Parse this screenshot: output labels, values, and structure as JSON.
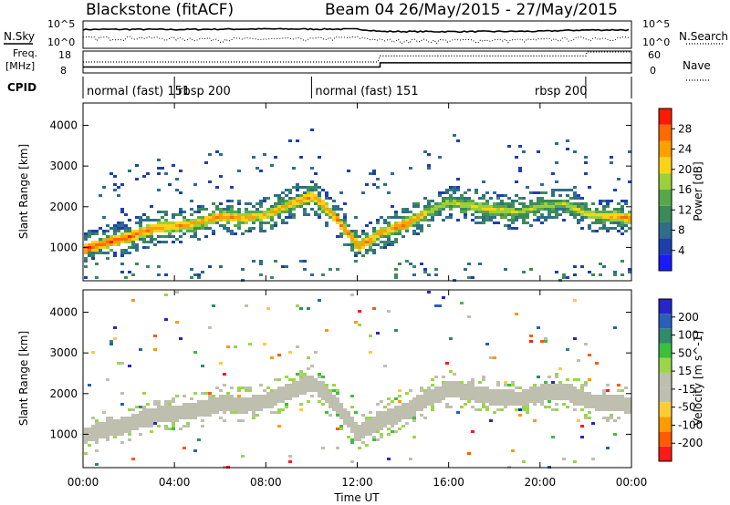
{
  "header": {
    "title": "Blackstone (fitACF)",
    "beam": "Beam 04",
    "dates": "26/May/2015 - 27/May/2015"
  },
  "status_panels": {
    "nsky_label": "N.Sky",
    "nsearch_label": "N.Search",
    "freq_label_1": "Freq.",
    "freq_label_2": "[MHz]",
    "nave_label": "Nave",
    "cpid_label": "CPID",
    "noise_ticks": [
      "10^5",
      "10^0"
    ],
    "freq_ticks": [
      "18",
      "8"
    ],
    "nave_ticks": [
      "60",
      "0"
    ],
    "cpid_segments": [
      {
        "label": "normal (fast) 151",
        "start_hour": 0,
        "end_hour": 4
      },
      {
        "label": "rbsp 200",
        "start_hour": 4,
        "end_hour": 10
      },
      {
        "label": "normal (fast) 151",
        "start_hour": 10,
        "end_hour": 22
      },
      {
        "label": "rbsp 200",
        "start_hour": 22,
        "end_hour": 24
      }
    ]
  },
  "colors": {
    "power_scale": [
      "#1a1aff",
      "#1f3fae",
      "#2f6e8a",
      "#3c8a5a",
      "#58a84a",
      "#9ccf3a",
      "#ffd21a",
      "#ffa000",
      "#ff6a00",
      "#ff1a00"
    ],
    "velocity_scale": [
      "#ff1a1a",
      "#ff5a00",
      "#ff9a00",
      "#ffcc33",
      "#bfbfb0",
      "#bfbfb0",
      "#9ad64a",
      "#3cbf3c",
      "#2f8a6e",
      "#2a5fb8",
      "#2626c8"
    ],
    "ground_scatter": "#bfbfb0"
  },
  "chart_data": [
    {
      "type": "line",
      "name": "noise-panel",
      "series": [
        {
          "name": "N.Sky",
          "style": "solid",
          "x": [
            0,
            2,
            4,
            6,
            8,
            10,
            12,
            13,
            16,
            20,
            22,
            24
          ],
          "y": [
            4000,
            4200,
            3800,
            4500,
            5000,
            4800,
            4600,
            1500,
            1400,
            1600,
            3000,
            3200
          ]
        },
        {
          "name": "N.Search",
          "style": "dotted",
          "x": [
            0,
            2,
            4,
            6,
            8,
            10,
            12,
            13,
            16,
            20,
            22,
            24
          ],
          "y": [
            60,
            80,
            50,
            40,
            35,
            40,
            80,
            20,
            20,
            25,
            60,
            70
          ]
        }
      ],
      "ylim": [
        1,
        100000
      ],
      "yscale": "log"
    },
    {
      "type": "line",
      "name": "frequency-panel",
      "series": [
        {
          "name": "Freq.",
          "style": "solid",
          "x": [
            0,
            13,
            13,
            24
          ],
          "y": [
            10.5,
            10.5,
            12.6,
            12.6
          ]
        },
        {
          "name": "Nave",
          "style": "dotted",
          "x": [
            0,
            12.9,
            13,
            22,
            22.05,
            24
          ],
          "y": [
            30,
            30,
            48,
            48,
            60,
            60
          ]
        }
      ],
      "ylim": [
        8,
        18
      ],
      "y2lim": [
        0,
        60
      ]
    },
    {
      "type": "heatmap",
      "name": "power-panel",
      "ylabel": "Slant Range [km]",
      "colorbar_label": "Power [dB]",
      "colorbar_ticks": [
        "28",
        "24",
        "20",
        "16",
        "12",
        "8",
        "4"
      ],
      "y_ticks": [
        "4000",
        "3000",
        "2000",
        "1000"
      ],
      "x_range_hours": [
        0,
        24
      ],
      "y_range_km": [
        180,
        4550
      ],
      "scatter_band": {
        "hours": [
          0,
          1,
          2,
          3,
          4,
          5,
          6,
          7,
          8,
          9,
          10,
          11,
          12,
          13,
          14,
          15,
          16,
          17,
          18,
          19,
          20,
          21,
          22,
          23,
          24
        ],
        "range_km": [
          1000,
          1150,
          1300,
          1500,
          1550,
          1650,
          1800,
          1750,
          1850,
          2100,
          2300,
          1750,
          1050,
          1400,
          1600,
          1900,
          2150,
          2050,
          1950,
          1900,
          2050,
          2100,
          1850,
          1800,
          1750
        ],
        "peak_power_db": [
          28,
          26,
          26,
          24,
          24,
          22,
          24,
          22,
          22,
          22,
          24,
          24,
          26,
          22,
          26,
          20,
          18,
          20,
          20,
          18,
          18,
          18,
          20,
          22,
          24
        ]
      }
    },
    {
      "type": "heatmap",
      "name": "velocity-panel",
      "xlabel": "Time UT",
      "ylabel": "Slant Range [km]",
      "colorbar_label": "Velocity [m s^-1]",
      "colorbar_ticks": [
        "200",
        "100",
        "50",
        "15",
        "-15",
        "-50",
        "-100",
        "-200"
      ],
      "y_ticks": [
        "4000",
        "3000",
        "2000",
        "1000"
      ],
      "x_ticks": [
        "00:00",
        "04:00",
        "08:00",
        "12:00",
        "16:00",
        "20:00",
        "00:00"
      ],
      "x_range_hours": [
        0,
        24
      ],
      "y_range_km": [
        180,
        4550
      ],
      "scatter_band": {
        "hours": [
          0,
          2,
          4,
          6,
          8,
          10,
          11,
          12,
          14,
          16,
          18,
          20,
          22,
          24
        ],
        "velocity_ms": [
          -10,
          -5,
          0,
          5,
          5,
          20,
          40,
          10,
          0,
          -5,
          0,
          0,
          -5,
          -10
        ]
      }
    }
  ]
}
